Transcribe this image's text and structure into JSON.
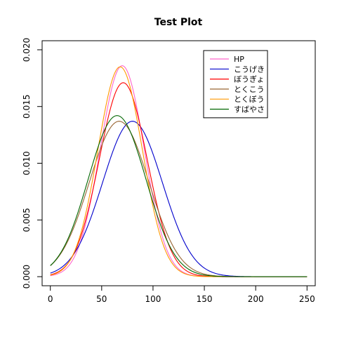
{
  "chart_data": {
    "type": "line",
    "title": "Test Plot",
    "xlabel": "",
    "ylabel": "",
    "xlim": [
      -8.0,
      258.0
    ],
    "ylim": [
      -0.0008,
      0.0208
    ],
    "x_ticks": [
      0,
      50,
      100,
      150,
      200,
      250
    ],
    "x_tick_labels": [
      "0",
      "50",
      "100",
      "150",
      "200",
      "250"
    ],
    "y_ticks": [
      0.0,
      0.005,
      0.01,
      0.015,
      0.02
    ],
    "y_tick_labels": [
      "0.000",
      "0.005",
      "0.010",
      "0.015",
      "0.020"
    ],
    "legend_position": "top-right",
    "grid": false,
    "series": [
      {
        "name": "HP",
        "color": "#ff66cc",
        "peak_x": 70,
        "peak_y": 0.0186,
        "sd": 21.4,
        "x_min": 0,
        "x_max": 250
      },
      {
        "name": "こうげき",
        "color": "#0000cc",
        "peak_x": 80,
        "peak_y": 0.0137,
        "sd": 29.1,
        "x_min": 0,
        "x_max": 250
      },
      {
        "name": "ぼうぎょ",
        "color": "#ff0000",
        "peak_x": 71,
        "peak_y": 0.0171,
        "sd": 23.3,
        "x_min": 0,
        "x_max": 250
      },
      {
        "name": "とくこう",
        "color": "#996633",
        "peak_x": 67,
        "peak_y": 0.0137,
        "sd": 29.1,
        "x_min": 0,
        "x_max": 250
      },
      {
        "name": "とくぼう",
        "color": "#ff9900",
        "peak_x": 68,
        "peak_y": 0.0185,
        "sd": 21.6,
        "x_min": 0,
        "x_max": 250
      },
      {
        "name": "すばやさ",
        "color": "#006600",
        "peak_x": 65,
        "peak_y": 0.0142,
        "sd": 28.1,
        "x_min": 0,
        "x_max": 250
      }
    ]
  }
}
